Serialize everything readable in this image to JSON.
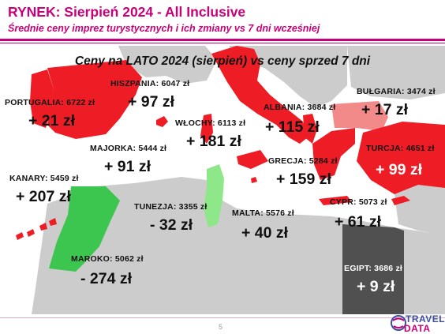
{
  "header": {
    "title": "RYNEK: Sierpień 2024 - All Inclusive",
    "subtitle": "Średnie ceny imprez turystycznych i ich zmiany vs 7 dni wcześniej"
  },
  "map_heading": "Ceny na LATO 2024 (sierpień) vs ceny sprzed 7 dni",
  "colors": {
    "increase_strong": "#ee1c25",
    "increase_light": "#f28a8a",
    "decrease": "#3cc650",
    "decrease_light": "#8ee88a",
    "unchanged": "#505050",
    "land": "#cccccc",
    "brand": "#c8007a"
  },
  "destinations": [
    {
      "name": "PORTUGALIA",
      "price": "6722 zł",
      "change": "+ 21 zł"
    },
    {
      "name": "HISZPANIA",
      "price": "6047 zł",
      "change": "+ 97 zł"
    },
    {
      "name": "WŁOCHY",
      "price": "6113 zł",
      "change": "+ 181 zł"
    },
    {
      "name": "ALBANIA",
      "price": "3684 zł",
      "change": "+ 115 zł"
    },
    {
      "name": "BUŁGARIA",
      "price": "3474 zł",
      "change": "+ 17 zł"
    },
    {
      "name": "MAJORKA",
      "price": "5444 zł",
      "change": "+ 91 zł"
    },
    {
      "name": "TURCJA",
      "price": "4651 zł",
      "change": "+ 99 zł"
    },
    {
      "name": "GRECJA",
      "price": "5284 zł",
      "change": "+ 159 zł"
    },
    {
      "name": "KANARY",
      "price": "5459 zł",
      "change": "+ 207 zł"
    },
    {
      "name": "TUNEZJA",
      "price": "3355 zł",
      "change": "- 32 zł"
    },
    {
      "name": "MALTA",
      "price": "5576 zł",
      "change": "+ 40 zł"
    },
    {
      "name": "CYPR",
      "price": "5073 zł",
      "change": "+ 61 zł"
    },
    {
      "name": "MAROKO",
      "price": "5062 zł",
      "change": "- 274 zł"
    },
    {
      "name": "EGIPT",
      "price": "3686 zł",
      "change": "+ 9 zł"
    }
  ],
  "footer": {
    "page_number": "5",
    "logo_top": "TRAVEL",
    "logo_bottom": "DATA"
  }
}
